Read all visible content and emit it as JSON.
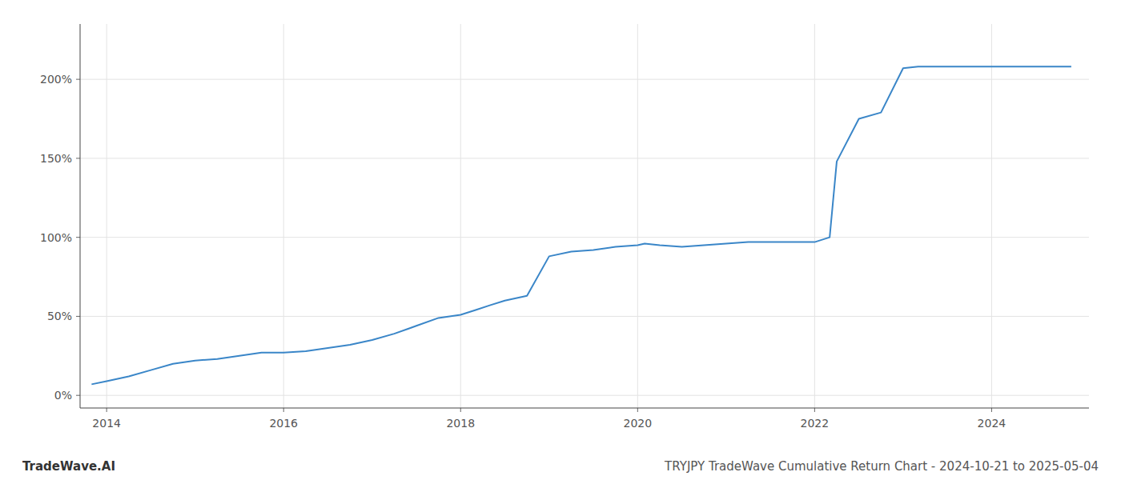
{
  "chart_data": {
    "type": "line",
    "title": "TRYJPY TradeWave Cumulative Return Chart - 2024-10-21 to 2025-05-04",
    "annotations": [
      "TradeWave.AI"
    ],
    "x": [
      2013.83,
      2014.0,
      2014.25,
      2014.5,
      2014.75,
      2015.0,
      2015.25,
      2015.5,
      2015.75,
      2016.0,
      2016.25,
      2016.5,
      2016.75,
      2017.0,
      2017.25,
      2017.5,
      2017.75,
      2018.0,
      2018.17,
      2018.33,
      2018.5,
      2018.75,
      2019.0,
      2019.25,
      2019.5,
      2019.75,
      2020.0,
      2020.08,
      2020.25,
      2020.5,
      2020.75,
      2021.0,
      2021.25,
      2021.5,
      2021.75,
      2022.0,
      2022.17,
      2022.25,
      2022.5,
      2022.75,
      2023.0,
      2023.17,
      2023.25,
      2023.33,
      2024.0,
      2024.5,
      2024.9
    ],
    "values": [
      7,
      9,
      12,
      16,
      20,
      22,
      23,
      25,
      27,
      27,
      28,
      30,
      32,
      35,
      39,
      44,
      49,
      51,
      54,
      57,
      60,
      63,
      88,
      91,
      92,
      94,
      95,
      96,
      95,
      94,
      95,
      96,
      97,
      97,
      97,
      97,
      100,
      148,
      175,
      179,
      207,
      208,
      208,
      208,
      208,
      208,
      208
    ],
    "color": "#3a86c8",
    "xlim": [
      2013.7,
      2025.1
    ],
    "ylim": [
      -8,
      235
    ],
    "xticks": [
      2014,
      2016,
      2018,
      2020,
      2022,
      2024
    ],
    "yticks": [
      {
        "value": 0,
        "label": "0%"
      },
      {
        "value": 50,
        "label": "50%"
      },
      {
        "value": 100,
        "label": "100%"
      },
      {
        "value": 150,
        "label": "150%"
      },
      {
        "value": 200,
        "label": "200%"
      }
    ],
    "grid": true
  }
}
